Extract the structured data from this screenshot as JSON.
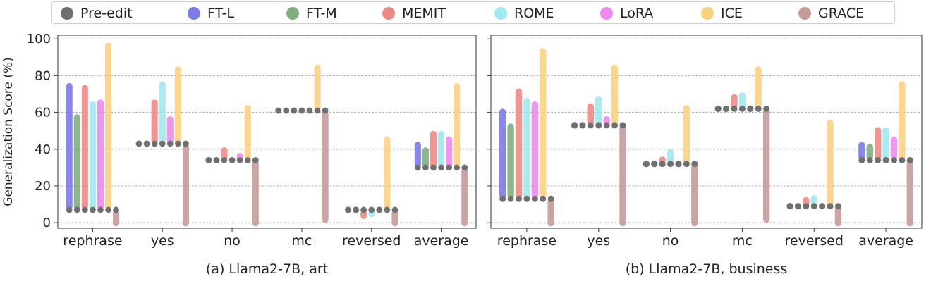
{
  "legend": {
    "items": [
      {
        "label": "Pre-edit",
        "color": "#6f6f6f"
      },
      {
        "label": "FT-L",
        "color": "#7b7be8"
      },
      {
        "label": "FT-M",
        "color": "#7faf7f"
      },
      {
        "label": "MEMIT",
        "color": "#ee8a86"
      },
      {
        "label": "ROME",
        "color": "#9feaf0"
      },
      {
        "label": "LoRA",
        "color": "#ee8aee"
      },
      {
        "label": "ICE",
        "color": "#fdd080"
      },
      {
        "label": "GRACE",
        "color": "#c79a9a"
      }
    ]
  },
  "chart_data": [
    {
      "type": "bar",
      "title": "(a) Llama2-7B, art",
      "xlabel": "",
      "ylabel": "Generalization Score (%)",
      "ylim": [
        -3,
        102
      ],
      "yticks": [
        "0",
        "20",
        "40",
        "60",
        "80",
        "100"
      ],
      "grid": "horizontal dashed",
      "categories": [
        "rephrase",
        "yes",
        "no",
        "mc",
        "reversed",
        "average"
      ],
      "note": "each method drawn as a bar spanning from the pre-edit score to the post-edit score; gray dots mark pre-edit",
      "pre_edit": [
        7,
        43,
        34,
        61,
        7,
        30
      ],
      "series": [
        {
          "name": "FT-L",
          "values": [
            76,
            40,
            37,
            59,
            4,
            44
          ]
        },
        {
          "name": "FT-M",
          "values": [
            59,
            40,
            31,
            60,
            7,
            41
          ]
        },
        {
          "name": "MEMIT",
          "values": [
            75,
            67,
            41,
            63,
            2,
            50
          ]
        },
        {
          "name": "ROME",
          "values": [
            66,
            77,
            34,
            62,
            3,
            50
          ]
        },
        {
          "name": "LoRA",
          "values": [
            67,
            58,
            38,
            63,
            4,
            47
          ]
        },
        {
          "name": "ICE",
          "values": [
            98,
            85,
            64,
            86,
            47,
            76
          ]
        },
        {
          "name": "GRACE",
          "values": [
            -2,
            -2,
            -2,
            0,
            -2,
            -2
          ]
        }
      ]
    },
    {
      "type": "bar",
      "title": "(b) Llama2-7B, business",
      "xlabel": "",
      "ylabel": "",
      "ylim": [
        -3,
        102
      ],
      "yticks": [
        "0",
        "20",
        "40",
        "60",
        "80",
        "100"
      ],
      "grid": "horizontal dashed",
      "categories": [
        "rephrase",
        "yes",
        "no",
        "mc",
        "reversed",
        "average"
      ],
      "note": "each method drawn as a bar spanning from the pre-edit score to the post-edit score; gray dots mark pre-edit",
      "pre_edit": [
        13,
        53,
        32,
        62,
        9,
        34
      ],
      "series": [
        {
          "name": "FT-L",
          "values": [
            62,
            51,
            34,
            60,
            11,
            44
          ]
        },
        {
          "name": "FT-M",
          "values": [
            54,
            53,
            34,
            63,
            8,
            43
          ]
        },
        {
          "name": "MEMIT",
          "values": [
            73,
            65,
            36,
            70,
            14,
            52
          ]
        },
        {
          "name": "ROME",
          "values": [
            68,
            69,
            40,
            71,
            15,
            52
          ]
        },
        {
          "name": "LoRA",
          "values": [
            66,
            58,
            34,
            65,
            12,
            47
          ]
        },
        {
          "name": "ICE",
          "values": [
            95,
            86,
            64,
            85,
            56,
            77
          ]
        },
        {
          "name": "GRACE",
          "values": [
            -2,
            -2,
            -2,
            0,
            -2,
            -2
          ]
        }
      ]
    }
  ]
}
